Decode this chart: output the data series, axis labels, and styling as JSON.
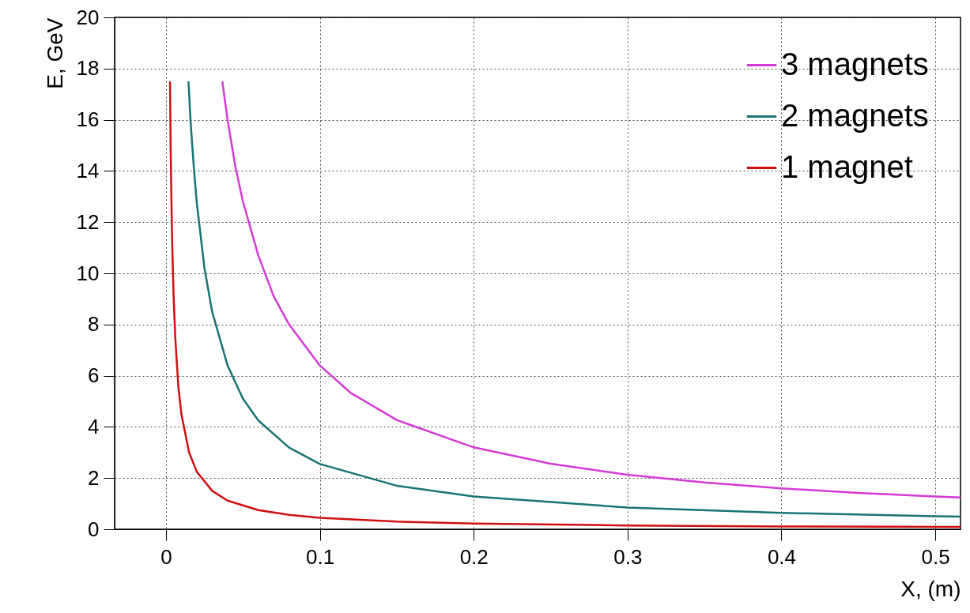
{
  "chart_data": {
    "type": "line",
    "xlabel": "X, (m)",
    "ylabel": "E, GeV",
    "xlim": [
      -0.0334,
      0.5164
    ],
    "ylim": [
      0,
      20
    ],
    "xticks": [
      0,
      0.1,
      0.2,
      0.3,
      0.4,
      0.5
    ],
    "yticks": [
      0,
      2,
      4,
      6,
      8,
      10,
      12,
      14,
      16,
      18,
      20
    ],
    "grid": true,
    "legend": "top right",
    "marker": "none",
    "line_style": "solid",
    "series": [
      {
        "name": "3 magnets",
        "color": "#d63ad6",
        "x": [
          0.0366,
          0.04,
          0.045,
          0.05,
          0.06,
          0.07,
          0.08,
          0.1,
          0.12,
          0.15,
          0.2,
          0.25,
          0.3,
          0.35,
          0.4,
          0.45,
          0.5,
          0.5164
        ],
        "values": [
          17.5,
          16,
          14.2,
          12.8,
          10.7,
          9.1,
          8.0,
          6.4,
          5.33,
          4.27,
          3.2,
          2.56,
          2.13,
          1.83,
          1.6,
          1.42,
          1.28,
          1.24
        ]
      },
      {
        "name": "2 magnets",
        "color": "#1a7373",
        "x": [
          0.0146,
          0.016,
          0.018,
          0.02,
          0.025,
          0.03,
          0.04,
          0.05,
          0.06,
          0.08,
          0.1,
          0.15,
          0.2,
          0.3,
          0.4,
          0.5,
          0.5164
        ],
        "values": [
          17.5,
          15.9,
          14.2,
          12.75,
          10.2,
          8.5,
          6.4,
          5.1,
          4.25,
          3.19,
          2.55,
          1.7,
          1.28,
          0.85,
          0.64,
          0.51,
          0.49
        ]
      },
      {
        "name": "1 magnet",
        "color": "#d01010",
        "x": [
          0.0026,
          0.003,
          0.0035,
          0.004,
          0.005,
          0.006,
          0.008,
          0.01,
          0.015,
          0.02,
          0.03,
          0.04,
          0.06,
          0.08,
          0.1,
          0.15,
          0.2,
          0.3,
          0.4,
          0.5164
        ],
        "values": [
          17.5,
          15,
          12.9,
          11.2,
          9,
          7.5,
          5.6,
          4.5,
          3.0,
          2.25,
          1.5,
          1.12,
          0.75,
          0.56,
          0.45,
          0.3,
          0.22,
          0.15,
          0.11,
          0.09
        ]
      }
    ]
  }
}
